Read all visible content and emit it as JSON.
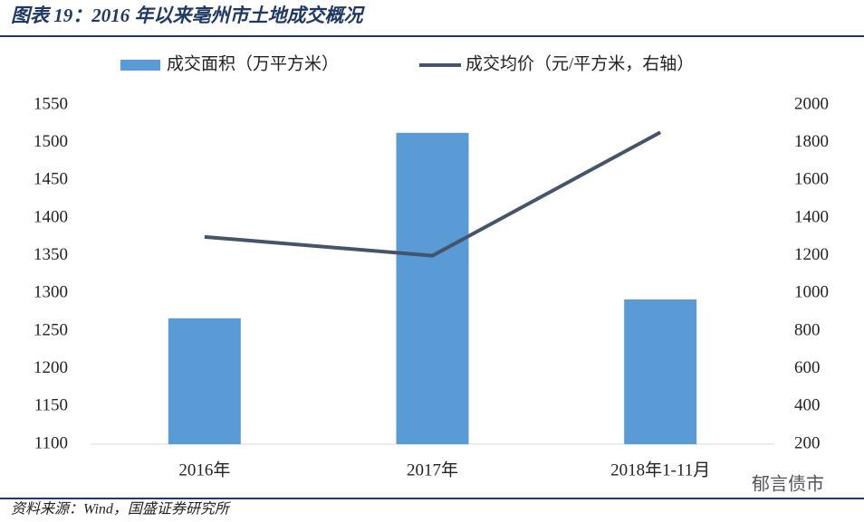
{
  "chart_data": {
    "type": "bar-line",
    "title": "图表 19：2016 年以来亳州市土地成交概况",
    "source": "资料来源：Wind，国盛证券研究所",
    "watermark": "郁言债市",
    "categories": [
      "2016年",
      "2017年",
      "2018年1-11月"
    ],
    "series": [
      {
        "name": "成交面积（万平方米）",
        "type": "bar",
        "color": "#5b9bd5",
        "values": [
          1267,
          1513,
          1292
        ]
      },
      {
        "name": "成交均价（元/平方米，右轴）",
        "type": "line",
        "axis": "y2",
        "color": "#44546a",
        "values": [
          1300,
          1200,
          1855
        ]
      }
    ],
    "ylim": [
      1100,
      1550
    ],
    "yticks": [
      1100,
      1150,
      1200,
      1250,
      1300,
      1350,
      1400,
      1450,
      1500,
      1550
    ],
    "y2lim": [
      200,
      2000
    ],
    "y2ticks": [
      200,
      400,
      600,
      800,
      1000,
      1200,
      1400,
      1600,
      1800,
      2000
    ],
    "legend": "top"
  }
}
